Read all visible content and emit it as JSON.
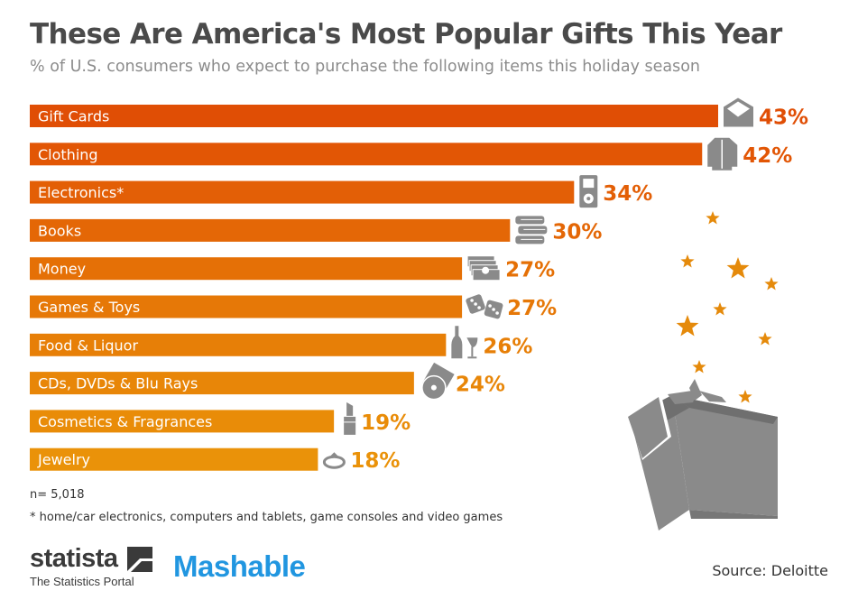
{
  "header": {
    "title": "These Are America's Most Popular Gifts This Year",
    "subtitle": "% of U.S. consumers who expect to purchase the following items this holiday season"
  },
  "chart_data": {
    "type": "bar",
    "orientation": "horizontal",
    "categories": [
      "Gift Cards",
      "Clothing",
      "Electronics*",
      "Books",
      "Money",
      "Games & Toys",
      "Food & Liquor",
      "CDs, DVDs & Blu Rays",
      "Cosmetics & Fragrances",
      "Jewelry"
    ],
    "values": [
      43,
      42,
      34,
      30,
      27,
      27,
      26,
      24,
      19,
      18
    ],
    "value_labels": [
      "43%",
      "42%",
      "34%",
      "30%",
      "27%",
      "27%",
      "26%",
      "24%",
      "19%",
      "18%"
    ],
    "unit": "%",
    "xlim": [
      0,
      43
    ],
    "bar_colors": [
      "#e04e05",
      "#e25605",
      "#e35f06",
      "#e46706",
      "#e57006",
      "#e67807",
      "#e77f07",
      "#e88608",
      "#e98c08",
      "#ea9209"
    ],
    "icons": [
      "envelope-icon",
      "shirt-icon",
      "music-player-icon",
      "books-icon",
      "money-icon",
      "dice-icon",
      "wine-icon",
      "disc-icon",
      "lipstick-icon",
      "ring-icon"
    ],
    "grid": false,
    "legend": "none"
  },
  "notes": {
    "sample": "n= 5,018",
    "footnote": "* home/car electronics, computers and tablets, game consoles and video games"
  },
  "footer": {
    "statista_logo": "statista",
    "statista_tagline": "The Statistics Portal",
    "mashable_logo": "Mashable",
    "source": "Source: Deloitte"
  },
  "colors": {
    "title": "#4a4a4a",
    "subtitle": "#8c8c8c",
    "icon": "#8a8a8a",
    "star": "#e58a0b",
    "gift_box": "#8a8a8a",
    "mashable": "#2196e0"
  }
}
